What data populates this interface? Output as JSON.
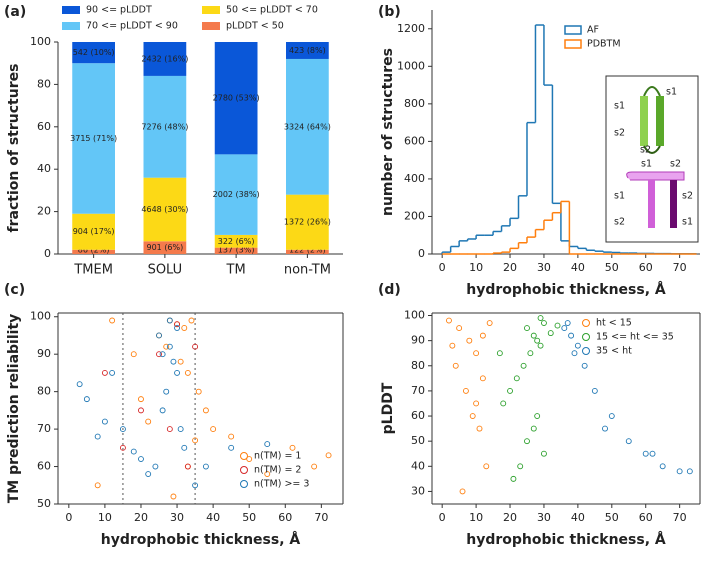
{
  "chart_data": [
    {
      "type": "bar",
      "panel_label": "(a)",
      "ylabel": "fraction of structures",
      "legend": "top",
      "categories": [
        "TMEM",
        "SOLU",
        "TM",
        "non-TM"
      ],
      "ylim": [
        0,
        100
      ],
      "yticks": [
        0,
        20,
        40,
        60,
        80,
        100
      ],
      "series": [
        {
          "name": "90 <= pLDDT",
          "color": "#0a57d8",
          "values": [
            10,
            16,
            53,
            8
          ],
          "value_labels": [
            "542 (10%)",
            "2432 (16%)",
            "2780 (53%)",
            "423 (8%)"
          ]
        },
        {
          "name": "70 <= pLDDT < 90",
          "color": "#63c6f7",
          "values": [
            71,
            48,
            38,
            64
          ],
          "value_labels": [
            "3715 (71%)",
            "7276 (48%)",
            "2002 (38%)",
            "3324 (64%)"
          ]
        },
        {
          "name": "50 <= pLDDT < 70",
          "color": "#fcd916",
          "values": [
            17,
            30,
            6,
            26
          ],
          "value_labels": [
            "904 (17%)",
            "4648 (30%)",
            "322 (6%)",
            "1372 (26%)"
          ]
        },
        {
          "name": "pLDDT < 50",
          "color": "#f47a4c",
          "values": [
            2,
            6,
            3,
            2
          ],
          "value_labels": [
            "86 (2%)",
            "901 (6%)",
            "137 (3%)",
            "122 (2%)"
          ]
        }
      ]
    },
    {
      "type": "histogram",
      "panel_label": "(b)",
      "ylabel": "number of structures",
      "xlabel": "hydrophobic thickness, Å",
      "legend": "upper right",
      "bins": [
        0,
        2.5,
        5,
        7.5,
        10,
        12.5,
        15,
        17.5,
        20,
        22.5,
        25,
        27.5,
        30,
        32.5,
        35,
        37.5,
        40,
        42.5,
        45,
        47.5,
        50,
        52.5,
        55,
        57.5,
        60,
        62.5,
        65,
        67.5,
        70,
        72.5,
        75
      ],
      "xlim": [
        -3,
        76
      ],
      "xticks": [
        0,
        10,
        20,
        30,
        40,
        50,
        60,
        70
      ],
      "ylim": [
        0,
        1300
      ],
      "yticks": [
        0,
        200,
        400,
        600,
        800,
        1000,
        1200
      ],
      "series": [
        {
          "name": "AF",
          "color": "#1f77b4",
          "values": [
            10,
            40,
            70,
            80,
            100,
            100,
            120,
            150,
            190,
            310,
            700,
            1220,
            900,
            270,
            70,
            40,
            30,
            20,
            15,
            10,
            8,
            5,
            5,
            3,
            3,
            2,
            2,
            1,
            1,
            1
          ]
        },
        {
          "name": "PDBTM",
          "color": "#ff7f0e",
          "values": [
            0,
            0,
            0,
            0,
            0,
            0,
            5,
            10,
            30,
            60,
            90,
            130,
            180,
            220,
            280,
            0,
            0,
            0,
            0,
            0,
            0,
            0,
            0,
            0,
            0,
            0,
            0,
            0,
            0,
            0
          ]
        }
      ],
      "inset_labels": [
        "s1",
        "s1",
        "s2",
        "s2",
        "s1",
        "s2",
        "s1",
        "s2",
        "s2",
        "s1"
      ]
    },
    {
      "type": "scatter",
      "panel_label": "(c)",
      "ylabel": "TM prediction reliability",
      "xlabel": "hydrophobic thickness, Å",
      "legend": "lower right",
      "xlim": [
        -3,
        76
      ],
      "xticks": [
        0,
        10,
        20,
        30,
        40,
        50,
        60,
        70
      ],
      "ylim": [
        50,
        101
      ],
      "yticks": [
        50,
        60,
        70,
        80,
        90,
        100
      ],
      "vlines": [
        15,
        35
      ],
      "series": [
        {
          "name": "n(TM) = 1",
          "color": "#ff7f0e",
          "x": [
            28,
            30,
            32,
            34,
            25,
            27,
            31,
            33,
            36,
            38,
            40,
            45,
            50,
            55,
            62,
            68,
            72,
            22,
            20,
            18,
            12,
            8,
            33,
            29,
            35
          ],
          "values": [
            99,
            98,
            97,
            99,
            95,
            92,
            88,
            85,
            80,
            75,
            70,
            68,
            62,
            58,
            65,
            60,
            63,
            72,
            78,
            90,
            99,
            55,
            60,
            52,
            67
          ]
        },
        {
          "name": "n(TM) = 2",
          "color": "#d62728",
          "x": [
            30,
            25,
            20,
            10,
            33,
            28,
            35,
            15
          ],
          "values": [
            98,
            90,
            75,
            85,
            60,
            70,
            92,
            65
          ]
        },
        {
          "name": "n(TM) >= 3",
          "color": "#1f77b4",
          "x": [
            28,
            29,
            30,
            27,
            26,
            31,
            32,
            25,
            24,
            20,
            15,
            10,
            8,
            5,
            3,
            12,
            18,
            22,
            35,
            38,
            45,
            55,
            30,
            28,
            26
          ],
          "values": [
            92,
            88,
            85,
            80,
            75,
            70,
            65,
            95,
            60,
            62,
            70,
            72,
            68,
            78,
            82,
            85,
            64,
            58,
            55,
            60,
            65,
            66,
            97,
            99,
            90
          ]
        }
      ]
    },
    {
      "type": "scatter",
      "panel_label": "(d)",
      "ylabel": "pLDDT",
      "xlabel": "hydrophobic thickness, Å",
      "legend": "upper right",
      "xlim": [
        -3,
        76
      ],
      "xticks": [
        0,
        10,
        20,
        30,
        40,
        50,
        60,
        70
      ],
      "ylim": [
        25,
        101
      ],
      "yticks": [
        30,
        40,
        50,
        60,
        70,
        80,
        90,
        100
      ],
      "series": [
        {
          "name": "ht < 15",
          "color": "#ff7f0e",
          "x": [
            2,
            5,
            8,
            10,
            12,
            14,
            4,
            7,
            9,
            11,
            13,
            6,
            3,
            12,
            10
          ],
          "values": [
            98,
            95,
            90,
            85,
            92,
            97,
            80,
            70,
            60,
            55,
            40,
            30,
            88,
            75,
            65
          ]
        },
        {
          "name": "15 <= ht <= 35",
          "color": "#2ca02c",
          "x": [
            25,
            27,
            28,
            29,
            30,
            26,
            24,
            22,
            20,
            18,
            32,
            34,
            28,
            27,
            25,
            30,
            23,
            21,
            17,
            29
          ],
          "values": [
            95,
            92,
            90,
            88,
            97,
            85,
            80,
            75,
            70,
            65,
            93,
            96,
            60,
            55,
            50,
            45,
            40,
            35,
            85,
            99
          ]
        },
        {
          "name": "35 < ht",
          "color": "#1f77b4",
          "x": [
            36,
            38,
            40,
            42,
            45,
            50,
            55,
            60,
            65,
            70,
            73,
            37,
            39,
            48,
            62
          ],
          "values": [
            95,
            92,
            88,
            80,
            70,
            60,
            50,
            45,
            40,
            38,
            38,
            97,
            85,
            55,
            45
          ]
        }
      ]
    }
  ]
}
